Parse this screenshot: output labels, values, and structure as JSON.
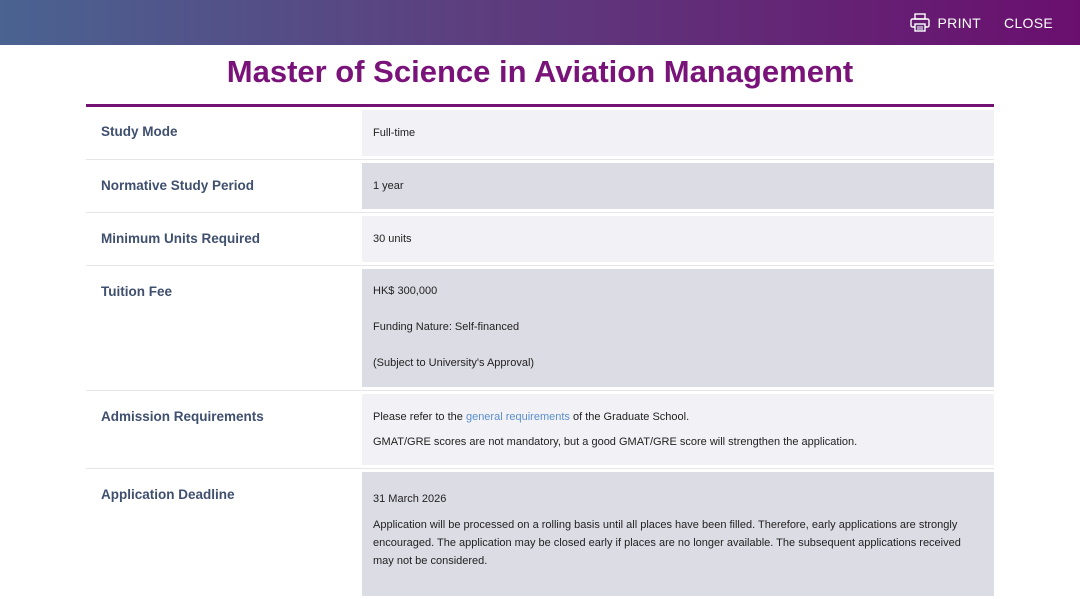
{
  "header": {
    "print_label": "PRINT",
    "close_label": "CLOSE"
  },
  "page": {
    "title": "Master of Science in Aviation Management"
  },
  "rows": {
    "study_mode": {
      "label": "Study Mode",
      "value": "Full-time"
    },
    "study_period": {
      "label": "Normative Study Period",
      "value": "1 year"
    },
    "min_units": {
      "label": "Minimum Units Required",
      "value": "30 units"
    },
    "tuition": {
      "label": "Tuition Fee",
      "fee": "HK$ 300,000",
      "funding": "Funding Nature: Self-financed",
      "note": "(Subject to University's Approval)"
    },
    "admission": {
      "label": "Admission Requirements",
      "line1_prefix": "Please refer to the ",
      "line1_link": "general requirements",
      "line1_suffix": " of the Graduate School.",
      "line2": "GMAT/GRE scores are not mandatory, but a good GMAT/GRE score will strengthen the application."
    },
    "deadline": {
      "label": "Application Deadline",
      "date": "31 March 2026",
      "note": "Application will be processed on a rolling basis until all places have been filled. Therefore, early applications are strongly encouraged. The application may be closed early if places are no longer available. The subsequent applications received may not be considered."
    }
  },
  "colors": {
    "accent": "#741273",
    "link": "#5b8fcc",
    "label": "#3f4f6e"
  }
}
